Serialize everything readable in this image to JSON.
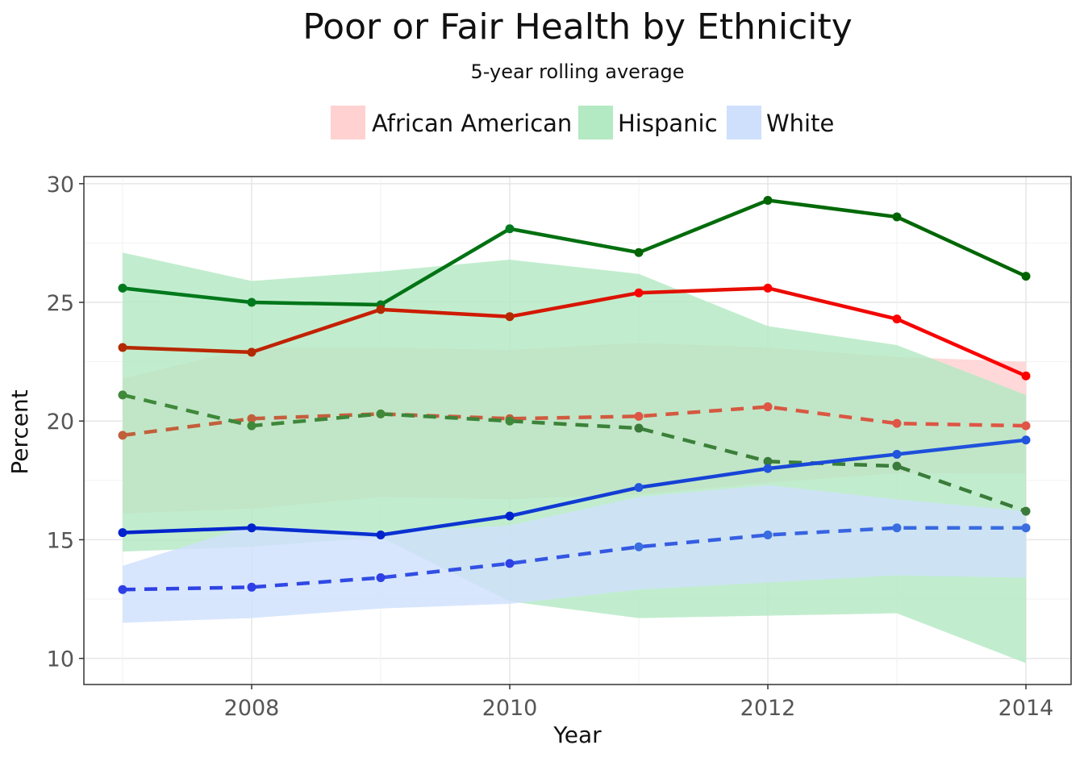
{
  "chart_data": {
    "type": "line",
    "title": "Poor or Fair Health by Ethnicity",
    "subtitle": "5-year rolling average",
    "xlabel": "Year",
    "ylabel": "Percent",
    "x": [
      2007,
      2008,
      2009,
      2010,
      2011,
      2012,
      2013,
      2014
    ],
    "xlim": [
      2006.7,
      2014.35
    ],
    "ylim": [
      8.9,
      30.3
    ],
    "xticks": [
      2008,
      2010,
      2012,
      2014
    ],
    "yticks": [
      10,
      15,
      20,
      25,
      30
    ],
    "grid": true,
    "legend_position": "top",
    "legend": [
      {
        "name": "African American",
        "color": "#ffd1d1"
      },
      {
        "name": "Hispanic",
        "color": "#b3e9c3"
      },
      {
        "name": "White",
        "color": "#cfe0fd"
      }
    ],
    "bands": [
      {
        "group": "African American",
        "color": "#ffd1d1",
        "lower": [
          16.1,
          16.3,
          16.8,
          16.7,
          16.9,
          17.4,
          17.8,
          17.8
        ],
        "upper": [
          21.8,
          23.1,
          23.1,
          23.0,
          23.3,
          23.1,
          22.7,
          22.5
        ]
      },
      {
        "group": "Hispanic",
        "color": "#b3e9c3",
        "lower": [
          14.5,
          14.7,
          15.1,
          12.4,
          11.7,
          11.8,
          11.9,
          9.8
        ],
        "upper": [
          27.1,
          25.9,
          26.3,
          26.8,
          26.2,
          24.0,
          23.2,
          21.1
        ]
      },
      {
        "group": "White",
        "color": "#cfe0fd",
        "lower": [
          11.5,
          11.7,
          12.1,
          12.3,
          12.9,
          13.2,
          13.5,
          13.4
        ],
        "upper": [
          13.9,
          15.6,
          15.3,
          15.6,
          16.8,
          17.3,
          16.7,
          16.2
        ]
      }
    ],
    "series": [
      {
        "group": "Hispanic",
        "style": "solid",
        "color_start": "#007a1e",
        "color_end": "#006400",
        "values": [
          25.6,
          25.0,
          24.9,
          28.1,
          27.1,
          29.3,
          28.6,
          26.1
        ]
      },
      {
        "group": "African American",
        "style": "solid",
        "color_start": "#b22a00",
        "color_end": "#ff0000",
        "values": [
          23.1,
          22.9,
          24.7,
          24.4,
          25.4,
          25.6,
          24.3,
          21.9
        ]
      },
      {
        "group": "African American",
        "style": "dashed",
        "color_start": "#c0603a",
        "color_end": "#e05545",
        "values": [
          19.4,
          20.1,
          20.3,
          20.1,
          20.2,
          20.6,
          19.9,
          19.8
        ]
      },
      {
        "group": "Hispanic",
        "style": "dashed",
        "color_start": "#3f8a3a",
        "color_end": "#3a7a3a",
        "values": [
          21.1,
          19.8,
          20.3,
          20.0,
          19.7,
          18.3,
          18.1,
          16.2
        ]
      },
      {
        "group": "White",
        "style": "solid",
        "color_start": "#0022cc",
        "color_end": "#2255dd",
        "values": [
          15.3,
          15.5,
          15.2,
          16.0,
          17.2,
          18.0,
          18.6,
          19.2
        ]
      },
      {
        "group": "White",
        "style": "dashed",
        "color_start": "#2d3fe5",
        "color_end": "#3a6ee0",
        "values": [
          12.9,
          13.0,
          13.4,
          14.0,
          14.7,
          15.2,
          15.5,
          15.5
        ]
      }
    ]
  }
}
